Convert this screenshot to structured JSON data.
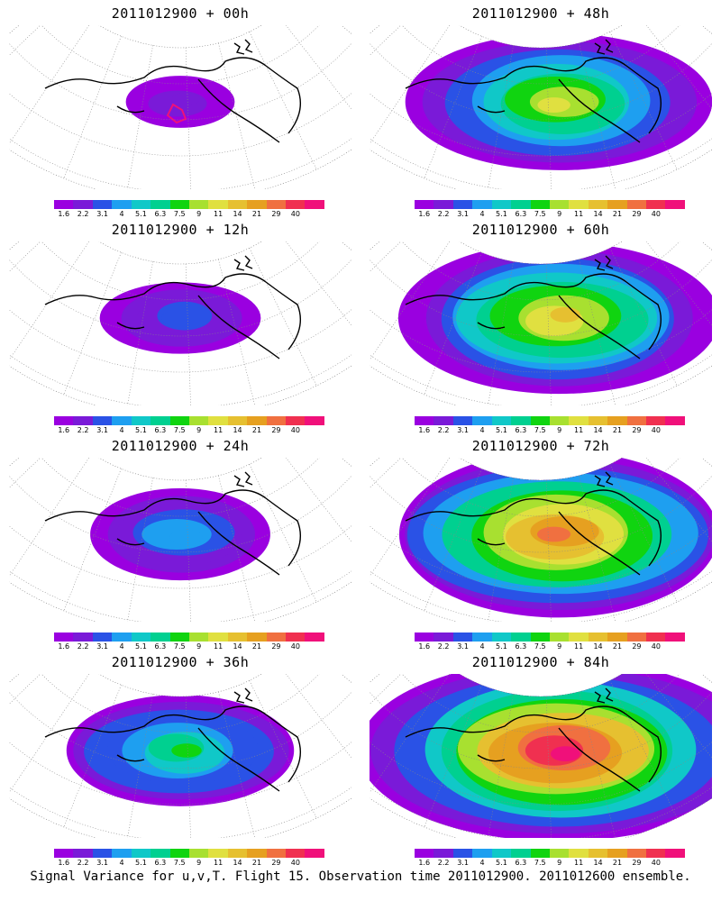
{
  "caption": "Signal Variance for u,v,T. Flight 15. Observation time 2011012900. 2011012600 ensemble.",
  "colorbar": {
    "labels": [
      "1.6",
      "2.2",
      "3.1",
      "4",
      "5.1",
      "6.3",
      "7.5",
      "9",
      "11",
      "14",
      "21",
      "29",
      "40"
    ],
    "colors": [
      "#9a00e0",
      "#7a1ad8",
      "#2a52e6",
      "#1e9ff0",
      "#10c8c8",
      "#00d090",
      "#10d410",
      "#a8e030",
      "#e0e040",
      "#e6c030",
      "#e6a020",
      "#f07040",
      "#f03050",
      "#f0107a"
    ]
  },
  "panels": [
    {
      "title": "2011012900 + 00h",
      "level": 0.05
    },
    {
      "title": "2011012900 + 48h",
      "level": 0.62
    },
    {
      "title": "2011012900 + 12h",
      "level": 0.18
    },
    {
      "title": "2011012900 + 60h",
      "level": 0.72
    },
    {
      "title": "2011012900 + 24h",
      "level": 0.32
    },
    {
      "title": "2011012900 + 72h",
      "level": 0.82
    },
    {
      "title": "2011012900 + 36h",
      "level": 0.45
    },
    {
      "title": "2011012900 + 84h",
      "level": 0.92
    }
  ]
}
